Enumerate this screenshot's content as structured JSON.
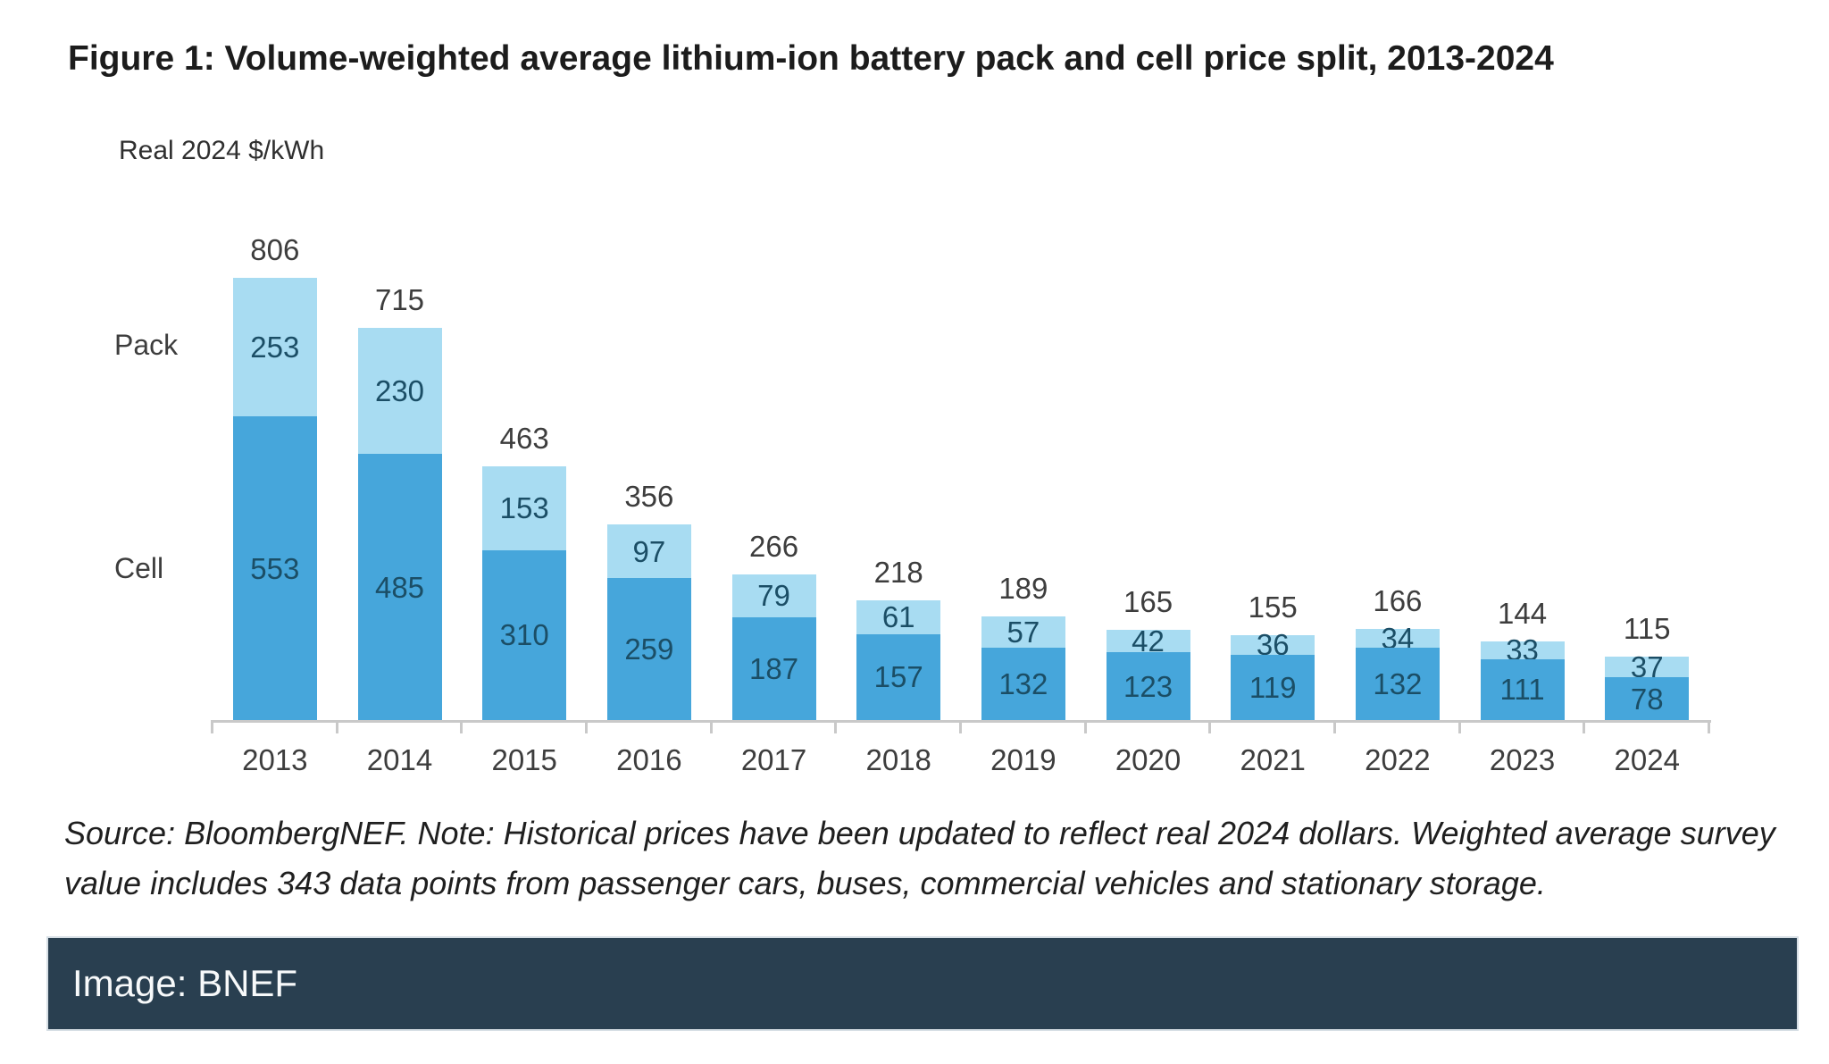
{
  "figure": {
    "title": "Figure 1: Volume-weighted average lithium-ion battery pack and cell price split, 2013-2024",
    "unit_label": "Real 2024 $/kWh",
    "pack_axis_label": "Pack",
    "cell_axis_label": "Cell",
    "source_note": "Source: BloombergNEF. Note: Historical prices have been updated to reflect real 2024 dollars. Weighted average survey value includes 343 data points from passenger cars, buses, commercial vehicles and stationary storage."
  },
  "banner": {
    "label": "Image: BNEF",
    "background_color": "#293F50"
  },
  "colors": {
    "pack_segment": "#A8DCF2",
    "cell_segment": "#46A6DB",
    "bar_value_text": "#1B4E66",
    "axis": "#C9C9C9",
    "label_text": "#3D3D3D"
  },
  "chart_data": {
    "type": "bar",
    "stacked": true,
    "title": "Figure 1: Volume-weighted average lithium-ion battery pack and cell price split, 2013-2024",
    "ylabel": "Real 2024 $/kWh",
    "xlabel": "",
    "categories": [
      "2013",
      "2014",
      "2015",
      "2016",
      "2017",
      "2018",
      "2019",
      "2020",
      "2021",
      "2022",
      "2023",
      "2024"
    ],
    "series": [
      {
        "name": "Cell",
        "color": "#46A6DB",
        "values": [
          553,
          485,
          310,
          259,
          187,
          157,
          132,
          123,
          119,
          132,
          111,
          78
        ]
      },
      {
        "name": "Pack",
        "color": "#A8DCF2",
        "values": [
          253,
          230,
          153,
          97,
          79,
          61,
          57,
          42,
          36,
          34,
          33,
          37
        ]
      }
    ],
    "totals": [
      806,
      715,
      463,
      356,
      266,
      218,
      189,
      165,
      155,
      166,
      144,
      115
    ],
    "value_labels": "inside-center",
    "total_labels": "above-bar",
    "grid": false,
    "y_axis_ticks_visible": false,
    "legend_position": "left-of-plot",
    "ylim": [
      0,
      990
    ]
  }
}
